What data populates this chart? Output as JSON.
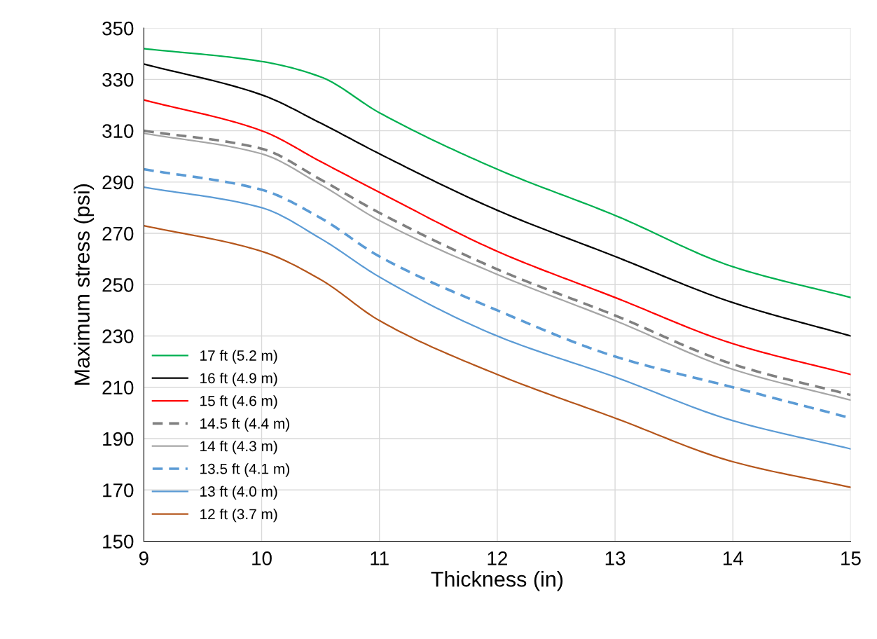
{
  "chart_data": {
    "type": "line",
    "xlabel": "Thickness (in)",
    "ylabel": "Maximum stress (psi)",
    "x": [
      9,
      10,
      10.5,
      11,
      12,
      13,
      14,
      15
    ],
    "xlim": [
      9,
      15
    ],
    "xticks": [
      9,
      10,
      11,
      12,
      13,
      14,
      15
    ],
    "ylim": [
      150,
      350
    ],
    "yticks": [
      150,
      170,
      190,
      210,
      230,
      250,
      270,
      290,
      310,
      330,
      350
    ],
    "grid": true,
    "legend": "bottom left",
    "marker": "none",
    "series": [
      {
        "name": "17 ft (5.2 m)",
        "color": "#00b050",
        "line_style": "solid",
        "values": [
          342,
          337,
          331,
          317,
          295,
          277,
          257,
          245
        ]
      },
      {
        "name": "16 ft (4.9 m)",
        "color": "#000000",
        "line_style": "solid",
        "values": [
          336,
          324,
          313,
          301,
          279,
          261,
          243,
          230
        ]
      },
      {
        "name": "15 ft (4.6 m)",
        "color": "#ff0000",
        "line_style": "solid",
        "values": [
          322,
          310,
          298,
          286,
          263,
          245,
          227,
          215
        ]
      },
      {
        "name": "14.5 ft (4.4 m)",
        "color": "#808080",
        "line_style": "dashed",
        "values": [
          310,
          303,
          291,
          278,
          256,
          238,
          219,
          207
        ]
      },
      {
        "name": "14 ft (4.3 m)",
        "color": "#a6a6a6",
        "line_style": "solid",
        "values": [
          309,
          301,
          289,
          275,
          254,
          236,
          217,
          205
        ]
      },
      {
        "name": "13.5 ft (4.1 m)",
        "color": "#5b9bd5",
        "line_style": "dashed",
        "values": [
          295,
          287,
          276,
          261,
          240,
          222,
          210,
          198
        ]
      },
      {
        "name": "13 ft (4.0 m)",
        "color": "#5b9bd5",
        "line_style": "solid",
        "values": [
          288,
          280,
          268,
          253,
          230,
          214,
          197,
          186
        ]
      },
      {
        "name": "12 ft (3.7 m)",
        "color": "#b5561c",
        "line_style": "solid",
        "values": [
          273,
          263,
          252,
          236,
          215,
          198,
          181,
          171
        ]
      }
    ]
  }
}
